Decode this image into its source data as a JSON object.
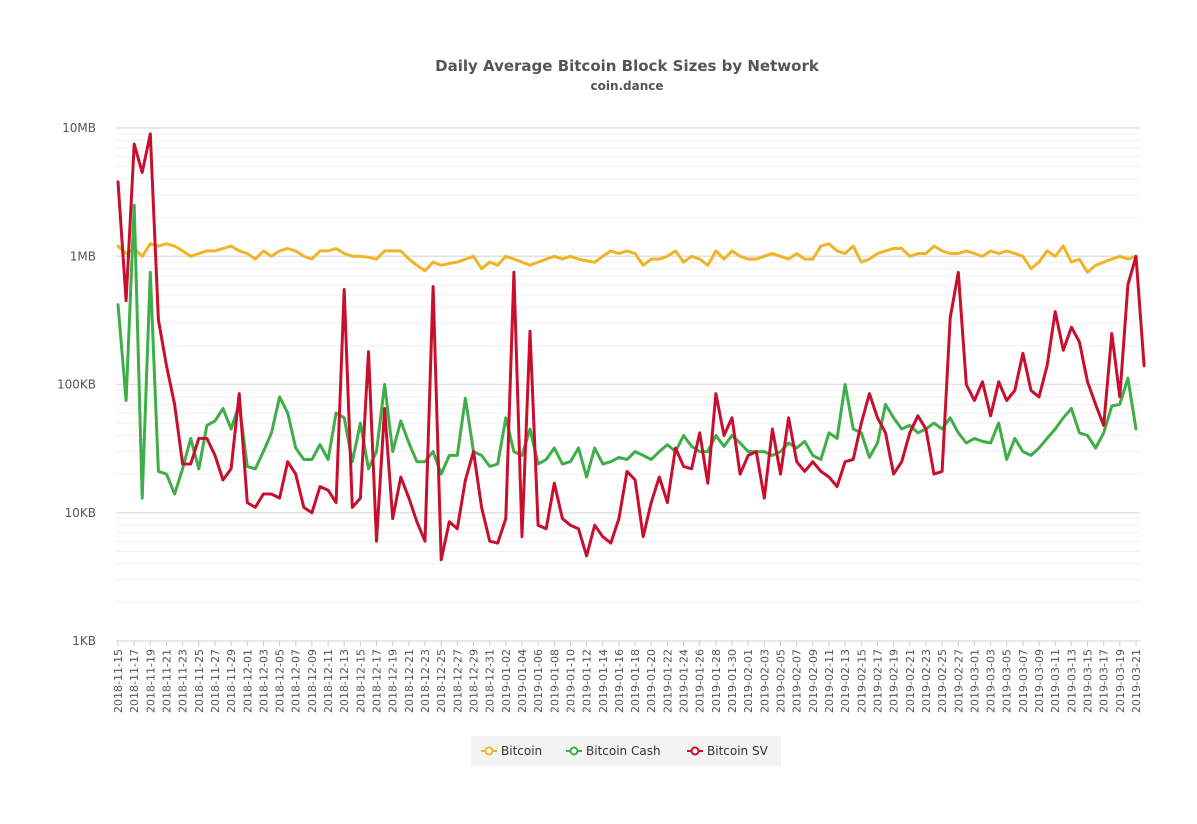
{
  "chart_data": {
    "type": "line",
    "title": "Daily Average Bitcoin Block Sizes by Network",
    "subtitle": "coin.dance",
    "y_scale": "log",
    "ylim_bytes": [
      1000,
      10000000
    ],
    "y_ticks": [
      {
        "label": "1KB",
        "value": 1000
      },
      {
        "label": "10KB",
        "value": 10000
      },
      {
        "label": "100KB",
        "value": 100000
      },
      {
        "label": "1MB",
        "value": 1000000
      },
      {
        "label": "10MB",
        "value": 10000000
      }
    ],
    "x_start": "2018-11-15",
    "x_labels": [
      "2018-11-15",
      "2018-11-17",
      "2018-11-19",
      "2018-11-21",
      "2018-11-23",
      "2018-11-25",
      "2018-11-27",
      "2018-11-29",
      "2018-12-01",
      "2018-12-03",
      "2018-12-05",
      "2018-12-07",
      "2018-12-09",
      "2018-12-11",
      "2018-12-13",
      "2018-12-15",
      "2018-12-17",
      "2018-12-19",
      "2018-12-21",
      "2018-12-23",
      "2018-12-25",
      "2018-12-27",
      "2018-12-29",
      "2018-12-31",
      "2019-01-02",
      "2019-01-04",
      "2019-01-06",
      "2019-01-08",
      "2019-01-10",
      "2019-01-12",
      "2019-01-14",
      "2019-01-16",
      "2019-01-18",
      "2019-01-20",
      "2019-01-22",
      "2019-01-24",
      "2019-01-26",
      "2019-01-28",
      "2019-01-30",
      "2019-02-01",
      "2019-02-03",
      "2019-02-05",
      "2019-02-07",
      "2019-02-09",
      "2019-02-11",
      "2019-02-13",
      "2019-02-15",
      "2019-02-17",
      "2019-02-19",
      "2019-02-21",
      "2019-02-23",
      "2019-02-25",
      "2019-02-27",
      "2019-03-01",
      "2019-03-03",
      "2019-03-05",
      "2019-03-07",
      "2019-03-09",
      "2019-03-11",
      "2019-03-13",
      "2019-03-15",
      "2019-03-17",
      "2019-03-19",
      "2019-03-21"
    ],
    "legend": [
      "Bitcoin",
      "Bitcoin Cash",
      "Bitcoin SV"
    ],
    "series": [
      {
        "name": "Bitcoin",
        "color": "#f0b429",
        "values_kb": [
          1200,
          1050,
          1150,
          1000,
          1250,
          1200,
          1250,
          1200,
          1100,
          1000,
          1050,
          1100,
          1100,
          1150,
          1200,
          1100,
          1050,
          950,
          1100,
          1000,
          1100,
          1150,
          1100,
          1000,
          950,
          1100,
          1100,
          1150,
          1050,
          1000,
          1000,
          980,
          950,
          1100,
          1100,
          1100,
          950,
          850,
          770,
          900,
          850,
          880,
          900,
          950,
          1000,
          800,
          900,
          850,
          1000,
          950,
          900,
          850,
          900,
          950,
          1000,
          950,
          1000,
          950,
          920,
          900,
          1000,
          1100,
          1050,
          1100,
          1050,
          850,
          950,
          950,
          1000,
          1100,
          900,
          1000,
          950,
          850,
          1100,
          950,
          1100,
          1000,
          950,
          950,
          1000,
          1050,
          1000,
          950,
          1050,
          950,
          950,
          1200,
          1250,
          1100,
          1050,
          1200,
          900,
          950,
          1050,
          1100,
          1150,
          1150,
          1000,
          1050,
          1050,
          1200,
          1100,
          1050,
          1050,
          1100,
          1050,
          1000,
          1100,
          1050,
          1100,
          1050,
          1000,
          800,
          900,
          1100,
          1000,
          1200,
          900,
          950,
          750,
          850,
          900,
          950,
          1000,
          950,
          1000
        ]
      },
      {
        "name": "Bitcoin Cash",
        "color": "#3fae49",
        "values_kb": [
          420,
          75,
          2500,
          13,
          750,
          21,
          20,
          14,
          22,
          38,
          22,
          48,
          52,
          65,
          45,
          70,
          23,
          22,
          30,
          42,
          80,
          60,
          32,
          26,
          26,
          34,
          26,
          60,
          55,
          25,
          50,
          22,
          30,
          100,
          30,
          52,
          35,
          25,
          25,
          30,
          20,
          28,
          28,
          78,
          30,
          28,
          23,
          24,
          55,
          30,
          28,
          45,
          24,
          26,
          32,
          24,
          25,
          32,
          19,
          32,
          24,
          25,
          27,
          26,
          30,
          28,
          26,
          30,
          34,
          30,
          40,
          33,
          30,
          30,
          40,
          33,
          40,
          35,
          30,
          30,
          30,
          28,
          30,
          35,
          32,
          36,
          28,
          26,
          42,
          38,
          100,
          45,
          42,
          27,
          35,
          70,
          55,
          45,
          48,
          42,
          45,
          50,
          45,
          55,
          42,
          35,
          38,
          36,
          35,
          50,
          26,
          38,
          30,
          28,
          32,
          38,
          45,
          55,
          65,
          42,
          40,
          32,
          42,
          68,
          70,
          112,
          45
        ]
      },
      {
        "name": "Bitcoin SV",
        "color": "#c8102e",
        "values_kb": [
          3800,
          450,
          7500,
          4500,
          9000,
          320,
          140,
          70,
          24,
          24,
          38,
          38,
          28,
          18,
          22,
          85,
          12,
          11,
          14,
          14,
          13,
          25,
          20,
          11,
          10,
          16,
          15,
          12,
          550,
          11,
          13,
          180,
          6,
          65,
          9,
          19,
          13,
          8.5,
          6,
          580,
          4.3,
          8.5,
          7.5,
          18,
          30,
          11,
          6,
          5.8,
          9,
          750,
          6.5,
          260,
          8,
          7.5,
          17,
          9,
          8,
          7.5,
          4.6,
          8,
          6.5,
          5.8,
          9,
          21,
          18,
          6.5,
          12,
          19,
          12,
          32,
          23,
          22,
          42,
          17,
          85,
          40,
          55,
          20,
          28,
          30,
          13,
          45,
          20,
          55,
          25,
          21,
          25,
          21,
          19,
          16,
          25,
          26,
          50,
          85,
          55,
          42,
          20,
          25,
          42,
          57,
          45,
          20,
          21,
          330,
          750,
          100,
          75,
          105,
          57,
          105,
          75,
          90,
          175,
          90,
          80,
          140,
          370,
          185,
          280,
          215,
          105,
          70,
          48,
          250,
          80,
          600,
          1000,
          140
        ]
      }
    ]
  }
}
